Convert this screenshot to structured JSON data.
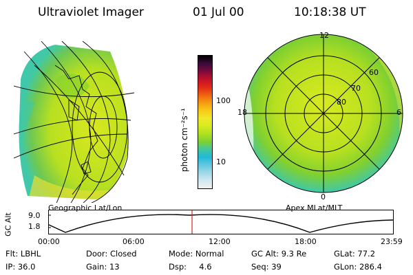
{
  "header": {
    "title": "Ultraviolet Imager",
    "date": "01 Jul 00",
    "time": "10:18:38 UT"
  },
  "colorbar": {
    "unit_label": "photon cm⁻²s⁻¹",
    "ticks": [
      "100",
      "10"
    ],
    "colors": [
      "#000000",
      "#3a0a3a",
      "#7a0a3a",
      "#c0102a",
      "#e02818",
      "#f06010",
      "#f59a10",
      "#f7c818",
      "#f0e828",
      "#d8ea20",
      "#b0e020",
      "#80d030",
      "#40c8a0",
      "#20b8d8",
      "#60c8e0",
      "#a0d8e8",
      "#d0e8f0",
      "#f0f0f0"
    ]
  },
  "left_panel": {
    "label": "Geographic Lat/Lon"
  },
  "right_panel": {
    "label": "Apex MLat/MLT",
    "mlt_labels": [
      "12",
      "18",
      "6",
      "0"
    ],
    "mlat_labels": [
      "60",
      "70",
      "80"
    ]
  },
  "timeline": {
    "axis_label": "GC Alt",
    "y_ticks": [
      "9.0",
      "1.8"
    ],
    "x_ticks": [
      "00:00",
      "06:00",
      "12:00",
      "18:00",
      "23:59"
    ],
    "cursor_time": "10:18:38"
  },
  "info": {
    "row1": [
      "Flt: LBHL",
      "Door: Closed",
      "Mode: Normal",
      "GC Alt: 9.3 Re",
      "GLat: 77.2"
    ],
    "row2": [
      "IP: 36.0",
      "Gain: 13",
      "Dsp:     4.6",
      "Seq: 39",
      "GLon: 286.4"
    ]
  },
  "accent_colors": {
    "cursor": "#d02020",
    "aurora_green": "#b8e020",
    "aurora_yellow": "#e8e030",
    "aurora_cyan": "#40c8a8"
  }
}
